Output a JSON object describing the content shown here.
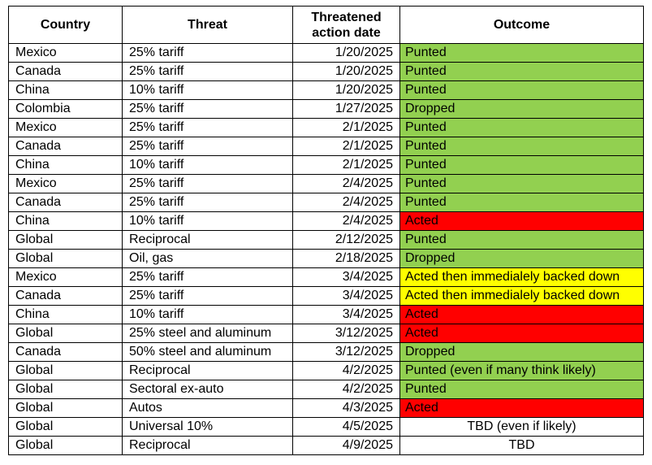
{
  "headers": {
    "country": "Country",
    "threat": "Threat",
    "date_line1": "Threatened",
    "date_line2": "action date",
    "outcome": "Outcome"
  },
  "status_colors": {
    "punted": "#92d050",
    "dropped": "#92d050",
    "acted": "#ff0000",
    "backed_down": "#ffff00",
    "tbd": "#ffffff"
  },
  "rows": [
    {
      "country": "Mexico",
      "threat": "25% tariff",
      "date": "1/20/2025",
      "outcome": "Punted",
      "status": "green"
    },
    {
      "country": "Canada",
      "threat": "25% tariff",
      "date": "1/20/2025",
      "outcome": "Punted",
      "status": "green"
    },
    {
      "country": "China",
      "threat": "10% tariff",
      "date": "1/20/2025",
      "outcome": "Punted",
      "status": "green"
    },
    {
      "country": "Colombia",
      "threat": "25% tariff",
      "date": "1/27/2025",
      "outcome": "Dropped",
      "status": "green"
    },
    {
      "country": "Mexico",
      "threat": "25% tariff",
      "date": "2/1/2025",
      "outcome": "Punted",
      "status": "green"
    },
    {
      "country": "Canada",
      "threat": "25% tariff",
      "date": "2/1/2025",
      "outcome": "Punted",
      "status": "green"
    },
    {
      "country": "China",
      "threat": "10% tariff",
      "date": "2/1/2025",
      "outcome": "Punted",
      "status": "green"
    },
    {
      "country": "Mexico",
      "threat": "25% tariff",
      "date": "2/4/2025",
      "outcome": "Punted",
      "status": "green"
    },
    {
      "country": "Canada",
      "threat": "25% tariff",
      "date": "2/4/2025",
      "outcome": "Punted",
      "status": "green"
    },
    {
      "country": "China",
      "threat": "10% tariff",
      "date": "2/4/2025",
      "outcome": "Acted",
      "status": "red"
    },
    {
      "country": "Global",
      "threat": "Reciprocal",
      "date": "2/12/2025",
      "outcome": "Punted",
      "status": "green"
    },
    {
      "country": "Global",
      "threat": "Oil, gas",
      "date": "2/18/2025",
      "outcome": "Dropped",
      "status": "green"
    },
    {
      "country": "Mexico",
      "threat": "25% tariff",
      "date": "3/4/2025",
      "outcome": "Acted then immedialely backed down",
      "status": "yellow"
    },
    {
      "country": "Canada",
      "threat": "25% tariff",
      "date": "3/4/2025",
      "outcome": "Acted then immedialely backed down",
      "status": "yellow"
    },
    {
      "country": "China",
      "threat": "10% tariff",
      "date": "3/4/2025",
      "outcome": "Acted",
      "status": "red"
    },
    {
      "country": "Global",
      "threat": "25% steel and aluminum",
      "date": "3/12/2025",
      "outcome": "Acted",
      "status": "red"
    },
    {
      "country": "Canada",
      "threat": "50% steel and aluminum",
      "date": "3/12/2025",
      "outcome": "Dropped",
      "status": "green"
    },
    {
      "country": "Global",
      "threat": "Reciprocal",
      "date": "4/2/2025",
      "outcome": "Punted (even if many think likely)",
      "status": "green"
    },
    {
      "country": "Global",
      "threat": "Sectoral ex-auto",
      "date": "4/2/2025",
      "outcome": "Punted",
      "status": "green"
    },
    {
      "country": "Global",
      "threat": "Autos",
      "date": "4/3/2025",
      "outcome": "Acted",
      "status": "red"
    },
    {
      "country": "Global",
      "threat": "Universal 10%",
      "date": "4/5/2025",
      "outcome": "TBD (even if likely)",
      "status": "none"
    },
    {
      "country": "Global",
      "threat": "Reciprocal",
      "date": "4/9/2025",
      "outcome": "TBD",
      "status": "none"
    }
  ]
}
